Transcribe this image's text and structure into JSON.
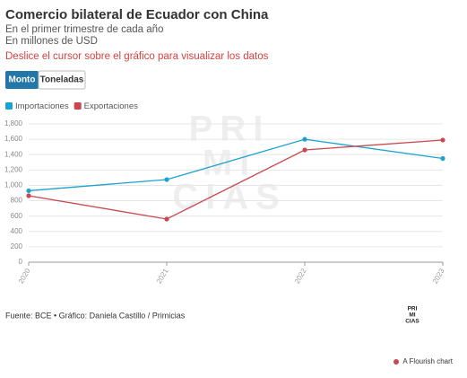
{
  "chart_data": {
    "type": "line",
    "title": "Comercio bilateral de Ecuador con China",
    "subtitle": [
      "En el primer trimestre de cada año",
      "En millones de USD"
    ],
    "instruction": "Deslice el cursor sobre el gráfico para visualizar los datos",
    "buttons": [
      "Monto",
      "Toneladas"
    ],
    "categories": [
      "2020",
      "2021",
      "2022",
      "2023"
    ],
    "series": [
      {
        "name": "Importaciones",
        "color": "#1ba3d0",
        "values": [
          930,
          1075,
          1600,
          1350
        ]
      },
      {
        "name": "Exportaciones",
        "color": "#c9474f",
        "values": [
          865,
          561,
          1461,
          1590
        ]
      }
    ],
    "ylim": [
      0,
      1800
    ],
    "yticks": [
      0,
      200,
      400,
      600,
      800,
      {
        "value": 1000,
        "label": "1,000"
      },
      {
        "value": 1200,
        "label": "1,200"
      },
      {
        "value": 1400,
        "label": "1,400"
      },
      {
        "value": 1600,
        "label": "1,600"
      },
      {
        "value": 1800,
        "label": "1,800"
      }
    ],
    "grid": true,
    "watermark": [
      "PRI",
      "MI",
      "CIAS"
    ],
    "source": "Fuente: BCE • Gráfico: Daniela Castillo / Primicias",
    "logo": [
      "PRI",
      "MI",
      "CIAS"
    ],
    "credit": "A Flourish chart"
  }
}
